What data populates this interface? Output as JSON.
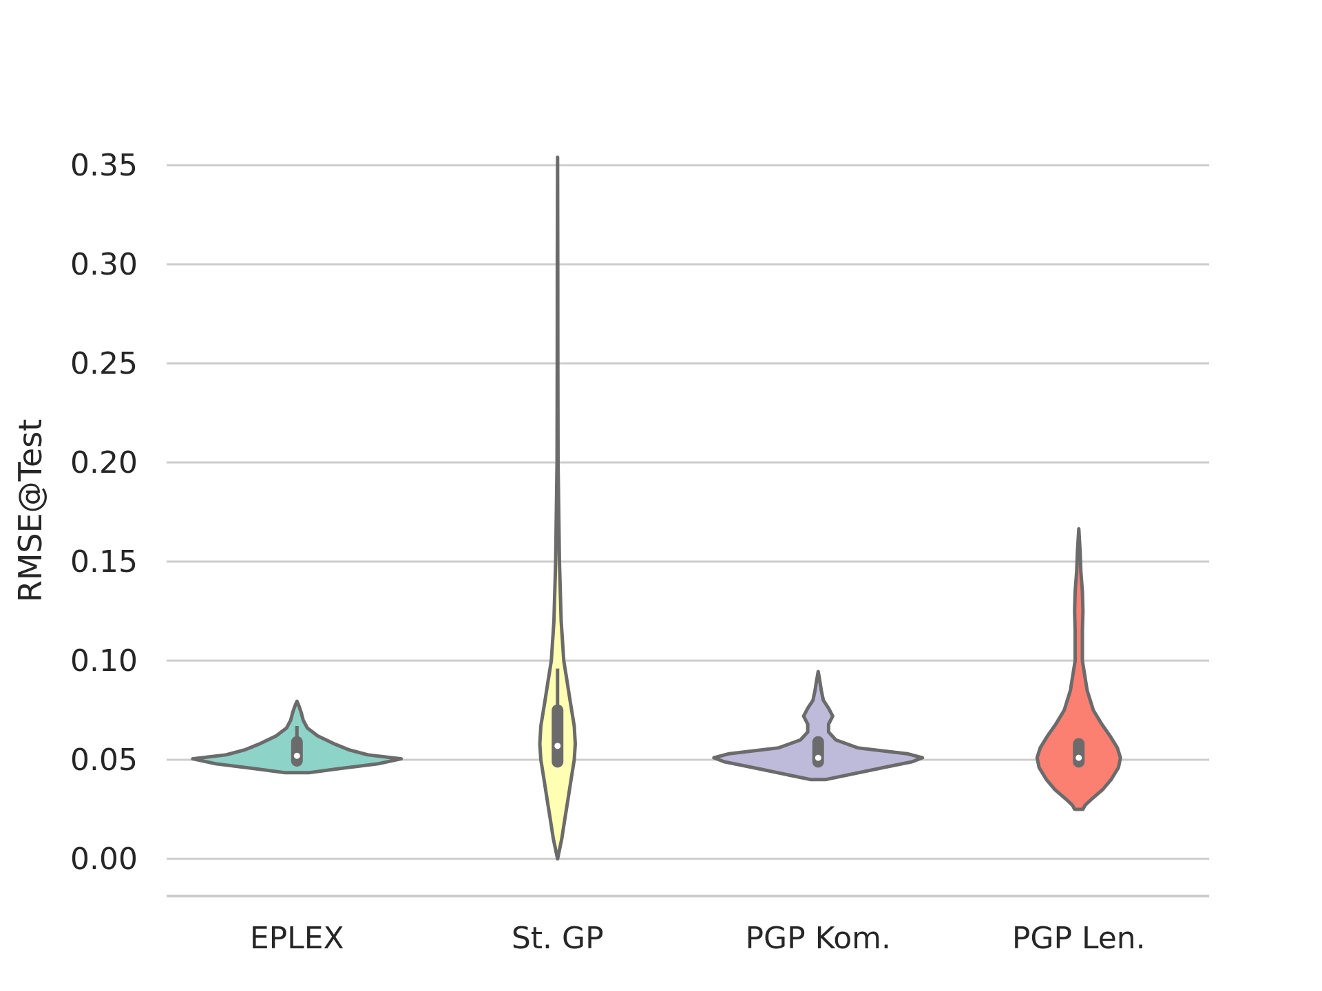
{
  "chart_data": {
    "type": "violin",
    "title": "",
    "xlabel": "",
    "ylabel": "RMSE@Test",
    "ylim": [
      -0.019,
      0.365
    ],
    "yticks": [
      "0.00",
      "0.05",
      "0.10",
      "0.15",
      "0.20",
      "0.25",
      "0.30",
      "0.35"
    ],
    "grid": "horizontal",
    "categories": [
      "EPLEX",
      "St. GP",
      "PGP Kom.",
      "PGP Len."
    ],
    "series": [
      {
        "category": "EPLEX",
        "color": "#8dd3c7",
        "min": 0.0435,
        "max": 0.0795,
        "whisker_low": 0.049,
        "whisker_high": 0.067,
        "q1": 0.0495,
        "q3": 0.059,
        "median": 0.052,
        "density": [
          [
            0.0435,
            0.12
          ],
          [
            0.0455,
            0.4
          ],
          [
            0.048,
            0.78
          ],
          [
            0.0505,
            1.0
          ],
          [
            0.0525,
            0.68
          ],
          [
            0.055,
            0.5
          ],
          [
            0.058,
            0.36
          ],
          [
            0.062,
            0.2
          ],
          [
            0.066,
            0.1
          ],
          [
            0.07,
            0.06
          ],
          [
            0.074,
            0.04
          ],
          [
            0.077,
            0.02
          ],
          [
            0.0795,
            0.0
          ]
        ]
      },
      {
        "category": "St. GP",
        "color": "#ffffb3",
        "min": 0.0,
        "max": 0.354,
        "whisker_low": 0.047,
        "whisker_high": 0.096,
        "q1": 0.049,
        "q3": 0.075,
        "median": 0.057,
        "density": [
          [
            0.0,
            0.0
          ],
          [
            0.01,
            0.04
          ],
          [
            0.02,
            0.07
          ],
          [
            0.03,
            0.1
          ],
          [
            0.04,
            0.13
          ],
          [
            0.05,
            0.16
          ],
          [
            0.058,
            0.17
          ],
          [
            0.067,
            0.16
          ],
          [
            0.08,
            0.12
          ],
          [
            0.09,
            0.09
          ],
          [
            0.1,
            0.06
          ],
          [
            0.12,
            0.035
          ],
          [
            0.15,
            0.018
          ],
          [
            0.2,
            0.005
          ],
          [
            0.25,
            0.003
          ],
          [
            0.3,
            0.002
          ],
          [
            0.354,
            0.0
          ]
        ]
      },
      {
        "category": "PGP Kom.",
        "color": "#bebada",
        "min": 0.04,
        "max": 0.0945,
        "whisker_low": 0.049,
        "whisker_high": 0.059,
        "q1": 0.049,
        "q3": 0.059,
        "median": 0.051,
        "density": [
          [
            0.04,
            0.07
          ],
          [
            0.0425,
            0.3
          ],
          [
            0.046,
            0.62
          ],
          [
            0.049,
            0.9
          ],
          [
            0.051,
            1.0
          ],
          [
            0.053,
            0.86
          ],
          [
            0.056,
            0.38
          ],
          [
            0.06,
            0.17
          ],
          [
            0.064,
            0.1
          ],
          [
            0.068,
            0.1
          ],
          [
            0.072,
            0.14
          ],
          [
            0.076,
            0.1
          ],
          [
            0.08,
            0.05
          ],
          [
            0.085,
            0.03
          ],
          [
            0.09,
            0.015
          ],
          [
            0.0945,
            0.0
          ]
        ]
      },
      {
        "category": "PGP Len.",
        "color": "#fb8072",
        "min": 0.025,
        "max": 0.1665,
        "whisker_low": 0.049,
        "whisker_high": 0.058,
        "q1": 0.049,
        "q3": 0.058,
        "median": 0.051,
        "density": [
          [
            0.025,
            0.04
          ],
          [
            0.027,
            0.06
          ],
          [
            0.03,
            0.12
          ],
          [
            0.035,
            0.23
          ],
          [
            0.04,
            0.31
          ],
          [
            0.046,
            0.38
          ],
          [
            0.051,
            0.4
          ],
          [
            0.056,
            0.37
          ],
          [
            0.062,
            0.3
          ],
          [
            0.068,
            0.22
          ],
          [
            0.075,
            0.14
          ],
          [
            0.085,
            0.08
          ],
          [
            0.1,
            0.035
          ],
          [
            0.115,
            0.035
          ],
          [
            0.125,
            0.04
          ],
          [
            0.135,
            0.035
          ],
          [
            0.145,
            0.02
          ],
          [
            0.155,
            0.013
          ],
          [
            0.1665,
            0.0
          ]
        ]
      }
    ]
  }
}
